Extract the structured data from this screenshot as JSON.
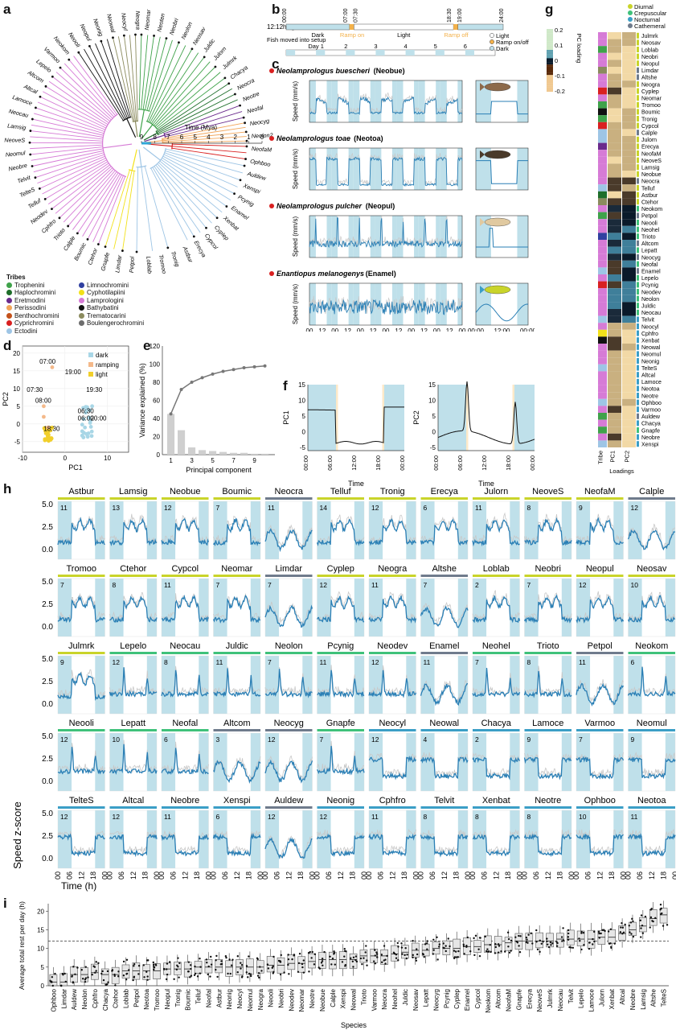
{
  "panels": {
    "a": "a",
    "b": "b",
    "c": "c",
    "d": "d",
    "e": "e",
    "f": "f",
    "g": "g",
    "h": "h",
    "i": "i"
  },
  "colors": {
    "dark_shade": "#bfe0ea",
    "trace": "#2a7fb5",
    "grey_trace": "#c8c8c8",
    "ramp": "#f3b14a",
    "diurnal": "#c9d42a",
    "crepuscular": "#3fc17a",
    "nocturnal": "#3b9ec6",
    "cathemeral": "#6f7b8c",
    "dots_dark": "#a8d6e6",
    "dots_ramp": "#f4b98a",
    "dots_light": "#f1cf2b"
  },
  "tree": {
    "time_label": "Time (Mya)",
    "time_ticks": [
      "9",
      "8",
      "7",
      "6",
      "5",
      "4",
      "3",
      "2",
      "1",
      "0"
    ],
    "labels": [
      "Ophboo",
      "Auldew",
      "Xenspi",
      "Pcynig",
      "Enamel",
      "Xenbat",
      "Cyplep",
      "Cypcol",
      "Erecya",
      "Astbur",
      "Tronig",
      "Tromoo",
      "Loblab",
      "Petpol",
      "Limdar",
      "Gnapfe",
      "Ctehor",
      "Boumic",
      "Calple",
      "Trioto",
      "Cphfro",
      "Neodev",
      "Telluf",
      "TelteS",
      "Telvit",
      "Neobre",
      "Neomul",
      "NeoveS",
      "Lamsig",
      "Neocau",
      "Lamoce",
      "Altcal",
      "Altcom",
      "Lepelo",
      "Varmoo",
      "Neokom",
      "Neooli",
      "Neopul",
      "Neonig",
      "Neowal",
      "Neocyl",
      "Neogra",
      "Neomar",
      "Neoten",
      "Neobri",
      "Neolon",
      "Neosav",
      "Juldic",
      "Julorn",
      "Julmrk",
      "Chacya",
      "Neocra",
      "Neotre",
      "Neofal",
      "Neocyg",
      "Neolon2",
      "NeofaM"
    ],
    "tribes_title": "Tribes",
    "tribes": [
      {
        "name": "Trophenini",
        "color": "#3fa24a"
      },
      {
        "name": "Haplochromini",
        "color": "#1e6e2a"
      },
      {
        "name": "Eretmodini",
        "color": "#6a2a8c"
      },
      {
        "name": "Perissodini",
        "color": "#f2a65a"
      },
      {
        "name": "Benthochromini",
        "color": "#c4521b"
      },
      {
        "name": "Cyprichromini",
        "color": "#d92020"
      },
      {
        "name": "Ectodini",
        "color": "#9ec5e5"
      },
      {
        "name": "Limnochromini",
        "color": "#3040a0"
      },
      {
        "name": "Cyphotilapiini",
        "color": "#f2e11a"
      },
      {
        "name": "Lamprologini",
        "color": "#d67bd6"
      },
      {
        "name": "Bathybatini",
        "color": "#111111"
      },
      {
        "name": "Trematocarini",
        "color": "#8b8b5e"
      },
      {
        "name": "Boulengerochromini",
        "color": "#6d6d6d"
      }
    ]
  },
  "schedule": {
    "title": "12:12h light:dark",
    "times": [
      "00:00",
      "07:00",
      "07:30",
      "18:30",
      "19:00",
      "24:00"
    ],
    "dark": "Dark",
    "light": "Light",
    "ramp_on": "Ramp on",
    "ramp_off": "Ramp off",
    "fish_moved": "Fish moved into setup",
    "days": [
      "Day 1",
      "2",
      "3",
      "4",
      "5",
      "6"
    ],
    "legend": [
      "Light",
      "Ramp on/off",
      "Dark"
    ]
  },
  "species_traces": [
    {
      "name": "Neolamprologus buescheri",
      "code": "(Neobue)"
    },
    {
      "name": "Neolamprologus toae",
      "code": "(Neotoa)"
    },
    {
      "name": "Neolamprologus pulcher",
      "code": "(Neopul)"
    },
    {
      "name": "Enantiopus melanogenys",
      "code": "(Enamel)"
    }
  ],
  "c_axes": {
    "ylabel": "Speed (mm/s)",
    "xlabel": "Time (h)",
    "xlabel2": "Time (h)",
    "xticks": [
      "00",
      "12",
      "00",
      "12",
      "00",
      "12",
      "00",
      "12",
      "00",
      "12",
      "00",
      "12",
      "00"
    ],
    "xticks2": [
      "00:00",
      "12:00",
      "00:00"
    ]
  },
  "chart_data": [
    {
      "panel": "d",
      "type": "scatter",
      "xlabel": "PC1",
      "ylabel": "PC2",
      "xlim": [
        -10,
        15
      ],
      "ylim": [
        -8,
        22
      ],
      "legend": [
        "dark",
        "ramping",
        "light"
      ],
      "annotations": [
        "07:00",
        "19:00",
        "07:30",
        "19:30",
        "08:00",
        "06:30",
        "06:00",
        "20:00",
        "18:30"
      ]
    },
    {
      "panel": "e",
      "type": "bar",
      "xlabel": "Principal component",
      "ylabel": "Variance explained (%)",
      "categories": [
        "1",
        "2",
        "3",
        "4",
        "5",
        "6",
        "7",
        "8",
        "9",
        "10"
      ],
      "values": [
        45,
        27,
        8,
        5,
        4,
        3,
        2,
        2,
        1,
        1
      ],
      "cumulative": [
        45,
        72,
        80,
        85,
        89,
        92,
        94,
        96,
        97,
        98
      ],
      "ylim": [
        0,
        120
      ]
    },
    {
      "panel": "f",
      "type": "line",
      "ylabel": "PC1",
      "xlabel": "Time",
      "xticks": [
        "00:00",
        "06:00",
        "12:00",
        "18:00",
        "00:00"
      ]
    },
    {
      "panel": "f2",
      "type": "line",
      "ylabel": "PC2",
      "xlabel": "Time",
      "xticks": [
        "00:00",
        "06:00",
        "12:00",
        "18:00",
        "00:00"
      ]
    }
  ],
  "heatmap": {
    "title": "PC loading",
    "scale": [
      "0.2",
      "0.1",
      "0",
      "-0.1",
      "-0.2"
    ],
    "legend": [
      {
        "name": "Diurnal",
        "color": "#c9d42a"
      },
      {
        "name": "Crepuscular",
        "color": "#3fc17a"
      },
      {
        "name": "Nocturnal",
        "color": "#3b9ec6"
      },
      {
        "name": "Cathemeral",
        "color": "#6f7b8c"
      }
    ],
    "cols": [
      "Tribe",
      "PC1",
      "PC2"
    ],
    "xlabel": "Loadings",
    "rows": [
      "Julmrk",
      "Neosav",
      "Loblab",
      "Neobri",
      "Neopul",
      "Limdar",
      "Altshe",
      "Neogra",
      "Cyplep",
      "Neomar",
      "Tromoo",
      "Boumic",
      "Tronig",
      "Cypcol",
      "Calple",
      "Julorn",
      "Erecya",
      "NeofaM",
      "NeoveS",
      "Lamsig",
      "Neobue",
      "Neocra",
      "Telluf",
      "Astbur",
      "Ctehor",
      "Neokom",
      "Petpol",
      "Neooli",
      "Neohel",
      "Trioto",
      "Altcom",
      "Lepatt",
      "Neocyg",
      "Neofal",
      "Enamel",
      "Lepelo",
      "Pcynig",
      "Neodev",
      "Neolon",
      "Juldic",
      "Neocau",
      "Telvit",
      "Neocyl",
      "Cphfro",
      "Xenbat",
      "Neowal",
      "Neomul",
      "Neonig",
      "TelteS",
      "Altcal",
      "Lamoce",
      "Neotoa",
      "Neotre",
      "Ophboo",
      "Varmoo",
      "Auldew",
      "Chacya",
      "Gnapfe",
      "Neobre",
      "Xenspi"
    ]
  },
  "grid_h": {
    "ylabel": "Speed z-score",
    "xlabel": "Time (h)",
    "yticks": [
      "5.0",
      "2.5",
      "0.0"
    ],
    "xticks": [
      "00",
      "06",
      "12",
      "18",
      "00"
    ],
    "rows": [
      [
        [
          "Astbur",
          "11",
          "d"
        ],
        [
          "Lamsig",
          "13",
          "d"
        ],
        [
          "Neobue",
          "12",
          "d"
        ],
        [
          "Boumic",
          "7",
          "d"
        ],
        [
          "Neocra",
          "11",
          "c"
        ],
        [
          "Telluf",
          "14",
          "d"
        ],
        [
          "Tronig",
          "12",
          "d"
        ],
        [
          "Erecya",
          "6",
          "d"
        ],
        [
          "Julorn",
          "11",
          "d"
        ],
        [
          "NeoveS",
          "8",
          "d"
        ],
        [
          "NeofaM",
          "9",
          "d"
        ],
        [
          "Calple",
          "12",
          "c"
        ]
      ],
      [
        [
          "Tromoo",
          "7",
          "d"
        ],
        [
          "Ctehor",
          "8",
          "d"
        ],
        [
          "Cypcol",
          "11",
          "d"
        ],
        [
          "Neomar",
          "7",
          "d"
        ],
        [
          "Limdar",
          "7",
          "c"
        ],
        [
          "Cyplep",
          "12",
          "d"
        ],
        [
          "Neogra",
          "11",
          "d"
        ],
        [
          "Altshe",
          "7",
          "c"
        ],
        [
          "Loblab",
          "2",
          "d"
        ],
        [
          "Neobri",
          "7",
          "d"
        ],
        [
          "Neopul",
          "12",
          "d"
        ],
        [
          "Neosav",
          "10",
          "d"
        ]
      ],
      [
        [
          "Julmrk",
          "9",
          "d"
        ],
        [
          "Lepelo",
          "12",
          "r"
        ],
        [
          "Neocau",
          "8",
          "r"
        ],
        [
          "Juldic",
          "11",
          "r"
        ],
        [
          "Neolon",
          "7",
          "r"
        ],
        [
          "Pcynig",
          "11",
          "r"
        ],
        [
          "Neodev",
          "12",
          "r"
        ],
        [
          "Enamel",
          "11",
          "c"
        ],
        [
          "Neohel",
          "7",
          "r"
        ],
        [
          "Trioto",
          "8",
          "r"
        ],
        [
          "Petpol",
          "11",
          "c"
        ],
        [
          "Neokom",
          "6",
          "r"
        ]
      ],
      [
        [
          "Neooli",
          "12",
          "r"
        ],
        [
          "Lepatt",
          "10",
          "r"
        ],
        [
          "Neofal",
          "6",
          "r"
        ],
        [
          "Altcom",
          "3",
          "c"
        ],
        [
          "Neocyg",
          "12",
          "c"
        ],
        [
          "Gnapfe",
          "7",
          "r"
        ],
        [
          "Neocyl",
          "12",
          "n"
        ],
        [
          "Neowal",
          "4",
          "n"
        ],
        [
          "Chacya",
          "2",
          "n"
        ],
        [
          "Lamoce",
          "9",
          "n"
        ],
        [
          "Varmoo",
          "7",
          "n"
        ],
        [
          "Neomul",
          "9",
          "n"
        ]
      ],
      [
        [
          "TelteS",
          "12",
          "n"
        ],
        [
          "Altcal",
          "12",
          "n"
        ],
        [
          "Neobre",
          "11",
          "n"
        ],
        [
          "Xenspi",
          "6",
          "n"
        ],
        [
          "Auldew",
          "12",
          "c"
        ],
        [
          "Neonig",
          "12",
          "n"
        ],
        [
          "Cphfro",
          "11",
          "n"
        ],
        [
          "Telvit",
          "8",
          "n"
        ],
        [
          "Xenbat",
          "8",
          "n"
        ],
        [
          "Neotre",
          "8",
          "n"
        ],
        [
          "Ophboo",
          "10",
          "n"
        ],
        [
          "Neotoa",
          "11",
          "n"
        ]
      ]
    ]
  },
  "boxplot": {
    "ylabel": "Average total rest per day (h)",
    "xlabel": "Species",
    "yticks": [
      "20",
      "15",
      "10",
      "5",
      "0"
    ],
    "species": [
      "Ophboo",
      "Limdar",
      "Auldew",
      "Neolon",
      "Cphfro",
      "Chacya",
      "Ctehor",
      "Loblab",
      "Petpol",
      "Neotoa",
      "Tromoo",
      "Neopul",
      "Tronig",
      "Boumic",
      "Telluf",
      "Neofal",
      "Astbur",
      "Neonig",
      "Neocyl",
      "Neomul",
      "Neogra",
      "Neooli",
      "Neobri",
      "Neodev",
      "Neomar",
      "Neotre",
      "Neobue",
      "Calple",
      "Xenspi",
      "Neowal",
      "Trioto",
      "Varmoo",
      "Neocra",
      "Neohel",
      "Juldic",
      "Neosav",
      "Lepatt",
      "Neocyg",
      "Pcynig",
      "Cyplep",
      "Enamel",
      "Cypcol",
      "Neokom",
      "Altcom",
      "NeofaM",
      "Gnapfe",
      "Erecya",
      "NeoveS",
      "Julmrk",
      "Neocau",
      "Telvit",
      "Lepelo",
      "Lamoce",
      "Julorn",
      "Xenbat",
      "Altcal",
      "Neobre",
      "Lamsig",
      "Altshe",
      "TelteS"
    ],
    "medians": [
      1,
      1,
      3,
      3,
      3.5,
      3,
      3,
      4,
      4,
      4,
      4,
      4.5,
      4.5,
      4.5,
      5,
      5,
      5,
      5,
      5,
      5,
      5,
      5.5,
      5.5,
      6,
      6,
      6.5,
      7,
      7,
      7,
      7,
      8,
      8,
      8,
      8.5,
      9,
      9.5,
      9.5,
      10,
      10,
      10,
      10.5,
      10.5,
      11,
      11,
      11.5,
      12,
      12,
      12,
      12,
      12.5,
      12.5,
      12.5,
      12.5,
      13,
      13,
      14,
      15,
      16,
      18,
      19
    ]
  }
}
